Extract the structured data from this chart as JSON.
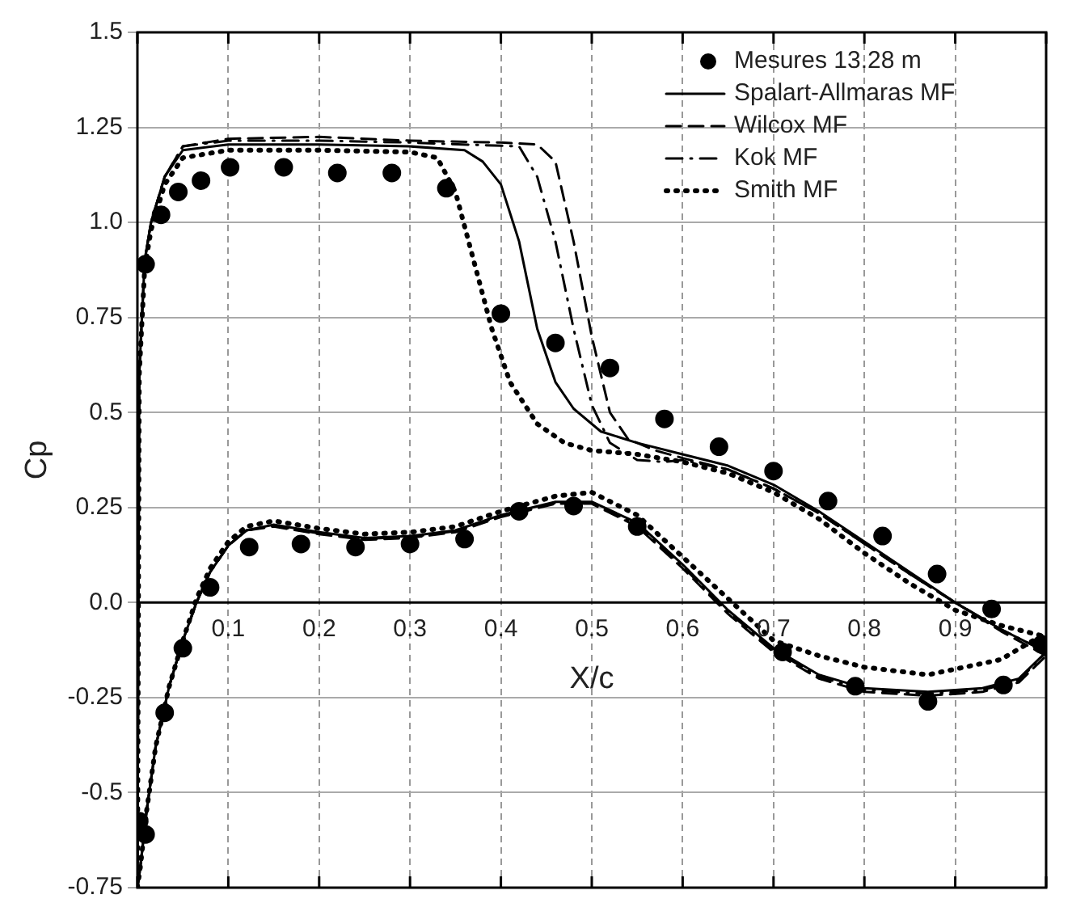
{
  "chart_data": {
    "type": "line",
    "xlabel": "X/c",
    "ylabel": "Cp",
    "xlim": [
      0,
      1
    ],
    "ylim": [
      -0.75,
      1.5
    ],
    "xticks": [
      {
        "value": 0,
        "label": null
      },
      0.1,
      0.2,
      0.3,
      0.4,
      0.5,
      0.6,
      0.7,
      0.8,
      0.9,
      {
        "value": 1,
        "label": null
      }
    ],
    "yticks": [
      -0.75,
      -0.5,
      -0.25,
      {
        "value": 0,
        "label": "0.0"
      },
      0.25,
      0.5,
      0.75,
      {
        "value": 1,
        "label": "1.0"
      },
      1.25,
      1.5
    ],
    "grid": true,
    "legend": "top right",
    "series": [
      {
        "name": "Mesures 13.28 m",
        "type": "scatter",
        "marker": "circle",
        "color": "#000000",
        "x": [
          0.002,
          0.009,
          0.009,
          0.026,
          0.045,
          0.07,
          0.102,
          0.161,
          0.22,
          0.28,
          0.34,
          0.4,
          0.46,
          0.52,
          0.58,
          0.64,
          0.7,
          0.76,
          0.82,
          0.88,
          0.94,
          0.995,
          0.03,
          0.05,
          0.08,
          0.123,
          0.18,
          0.24,
          0.3,
          0.36,
          0.42,
          0.48,
          0.55,
          0.71,
          0.79,
          0.87,
          0.953
        ],
        "values": [
          -0.575,
          -0.61,
          0.89,
          1.02,
          1.08,
          1.11,
          1.145,
          1.145,
          1.13,
          1.13,
          1.09,
          0.76,
          0.683,
          0.617,
          0.483,
          0.41,
          0.346,
          0.267,
          0.175,
          0.075,
          -0.017,
          -0.11,
          -0.29,
          -0.12,
          0.04,
          0.146,
          0.154,
          0.146,
          0.154,
          0.167,
          0.24,
          0.254,
          0.2,
          -0.13,
          -0.22,
          -0.26,
          -0.217
        ]
      },
      {
        "name": "Spalart-Allmaras MF",
        "type": "line",
        "line_style": "solid",
        "marker": "none",
        "color": "#000000",
        "x": [
          0,
          0.002,
          0.008,
          0.015,
          0.03,
          0.05,
          0.1,
          0.2,
          0.3,
          0.36,
          0.38,
          0.4,
          0.42,
          0.44,
          0.46,
          0.48,
          0.51,
          0.55,
          0.6,
          0.65,
          0.7,
          0.75,
          0.8,
          0.85,
          0.9,
          0.95,
          1
        ],
        "values": [
          -0.75,
          0.6,
          0.9,
          1,
          1.12,
          1.19,
          1.205,
          1.205,
          1.2,
          1.19,
          1.16,
          1.1,
          0.95,
          0.72,
          0.58,
          0.51,
          0.45,
          0.42,
          0.39,
          0.36,
          0.31,
          0.24,
          0.16,
          0.08,
          0,
          -0.07,
          -0.13
        ]
      },
      {
        "type": "line",
        "line_style": "solid",
        "marker": "none",
        "color": "#000000",
        "x": [
          0,
          0.003,
          0.01,
          0.02,
          0.035,
          0.05,
          0.065,
          0.08,
          0.1,
          0.12,
          0.15,
          0.2,
          0.25,
          0.3,
          0.35,
          0.4,
          0.46,
          0.5,
          0.55,
          0.6,
          0.65,
          0.7,
          0.75,
          0.8,
          0.87,
          0.93,
          0.97,
          1
        ],
        "values": [
          -0.75,
          -0.7,
          -0.55,
          -0.38,
          -0.22,
          -0.1,
          0,
          0.08,
          0.15,
          0.19,
          0.205,
          0.185,
          0.17,
          0.175,
          0.19,
          0.23,
          0.265,
          0.265,
          0.21,
          0.1,
          -0.02,
          -0.12,
          -0.19,
          -0.225,
          -0.235,
          -0.225,
          -0.2,
          -0.13
        ]
      },
      {
        "name": "Wilcox MF",
        "type": "line",
        "line_style": "dashed",
        "marker": "none",
        "color": "#000000",
        "x": [
          0,
          0.002,
          0.008,
          0.015,
          0.03,
          0.05,
          0.1,
          0.2,
          0.3,
          0.4,
          0.44,
          0.46,
          0.48,
          0.5,
          0.52,
          0.54,
          0.57,
          0.6,
          0.65,
          0.7,
          0.75,
          0.8,
          0.85,
          0.9,
          0.95,
          1
        ],
        "values": [
          -0.75,
          0.6,
          0.9,
          1,
          1.12,
          1.2,
          1.22,
          1.225,
          1.215,
          1.21,
          1.205,
          1.16,
          0.95,
          0.7,
          0.5,
          0.43,
          0.4,
          0.38,
          0.35,
          0.3,
          0.235,
          0.155,
          0.075,
          0,
          -0.075,
          -0.14
        ]
      },
      {
        "type": "line",
        "line_style": "dashed",
        "marker": "none",
        "color": "#000000",
        "x": [
          0,
          0.003,
          0.01,
          0.02,
          0.035,
          0.05,
          0.065,
          0.08,
          0.1,
          0.12,
          0.15,
          0.2,
          0.25,
          0.3,
          0.35,
          0.4,
          0.46,
          0.5,
          0.55,
          0.6,
          0.65,
          0.7,
          0.75,
          0.8,
          0.87,
          0.93,
          0.97,
          1
        ],
        "values": [
          -0.75,
          -0.7,
          -0.55,
          -0.38,
          -0.22,
          -0.1,
          0,
          0.08,
          0.15,
          0.19,
          0.2,
          0.18,
          0.165,
          0.17,
          0.185,
          0.225,
          0.26,
          0.26,
          0.2,
          0.09,
          -0.03,
          -0.13,
          -0.2,
          -0.235,
          -0.245,
          -0.235,
          -0.21,
          -0.14
        ]
      },
      {
        "name": "Kok MF",
        "type": "line",
        "line_style": "dashdot",
        "marker": "none",
        "color": "#000000",
        "x": [
          0,
          0.002,
          0.008,
          0.015,
          0.03,
          0.05,
          0.1,
          0.2,
          0.3,
          0.42,
          0.44,
          0.46,
          0.48,
          0.5,
          0.52,
          0.55,
          0.58,
          0.6,
          0.65,
          0.7,
          0.75,
          0.8,
          0.85,
          0.9,
          0.95,
          1
        ],
        "values": [
          -0.75,
          0.6,
          0.9,
          1,
          1.12,
          1.2,
          1.215,
          1.215,
          1.21,
          1.2,
          1.12,
          0.95,
          0.72,
          0.52,
          0.42,
          0.375,
          0.37,
          0.375,
          0.35,
          0.3,
          0.235,
          0.155,
          0.075,
          0,
          -0.07,
          -0.13
        ]
      },
      {
        "type": "line",
        "line_style": "dashdot",
        "marker": "none",
        "color": "#000000",
        "x": [
          0,
          0.003,
          0.01,
          0.02,
          0.035,
          0.05,
          0.065,
          0.08,
          0.1,
          0.12,
          0.15,
          0.2,
          0.25,
          0.3,
          0.35,
          0.4,
          0.46,
          0.5,
          0.55,
          0.6,
          0.65,
          0.7,
          0.75,
          0.8,
          0.87,
          0.93,
          0.97,
          1
        ],
        "values": [
          -0.75,
          -0.7,
          -0.55,
          -0.38,
          -0.22,
          -0.1,
          0,
          0.08,
          0.15,
          0.19,
          0.202,
          0.182,
          0.168,
          0.172,
          0.188,
          0.228,
          0.262,
          0.262,
          0.205,
          0.095,
          -0.025,
          -0.125,
          -0.195,
          -0.23,
          -0.24,
          -0.23,
          -0.205,
          -0.13
        ]
      },
      {
        "name": "Smith MF",
        "type": "line",
        "line_style": "dotted",
        "marker": "none",
        "color": "#000000",
        "x": [
          0,
          0.002,
          0.008,
          0.015,
          0.03,
          0.05,
          0.1,
          0.2,
          0.3,
          0.33,
          0.35,
          0.37,
          0.39,
          0.41,
          0.44,
          0.47,
          0.5,
          0.55,
          0.6,
          0.65,
          0.7,
          0.75,
          0.8,
          0.85,
          0.9,
          0.95,
          1
        ],
        "values": [
          -0.75,
          0.6,
          0.88,
          0.98,
          1.1,
          1.17,
          1.19,
          1.19,
          1.185,
          1.17,
          1.08,
          0.9,
          0.72,
          0.58,
          0.47,
          0.42,
          0.4,
          0.39,
          0.37,
          0.34,
          0.29,
          0.22,
          0.13,
          0.05,
          -0.02,
          -0.06,
          -0.09
        ]
      },
      {
        "type": "line",
        "line_style": "dotted",
        "marker": "none",
        "color": "#000000",
        "x": [
          0,
          0.003,
          0.01,
          0.02,
          0.035,
          0.05,
          0.065,
          0.08,
          0.1,
          0.12,
          0.15,
          0.2,
          0.25,
          0.3,
          0.35,
          0.4,
          0.46,
          0.5,
          0.55,
          0.6,
          0.65,
          0.7,
          0.75,
          0.8,
          0.87,
          0.95,
          1
        ],
        "values": [
          -0.75,
          -0.7,
          -0.55,
          -0.38,
          -0.22,
          -0.1,
          0.01,
          0.09,
          0.16,
          0.2,
          0.215,
          0.195,
          0.18,
          0.185,
          0.2,
          0.24,
          0.28,
          0.29,
          0.23,
          0.12,
          0.01,
          -0.1,
          -0.14,
          -0.17,
          -0.19,
          -0.15,
          -0.08
        ]
      }
    ]
  }
}
